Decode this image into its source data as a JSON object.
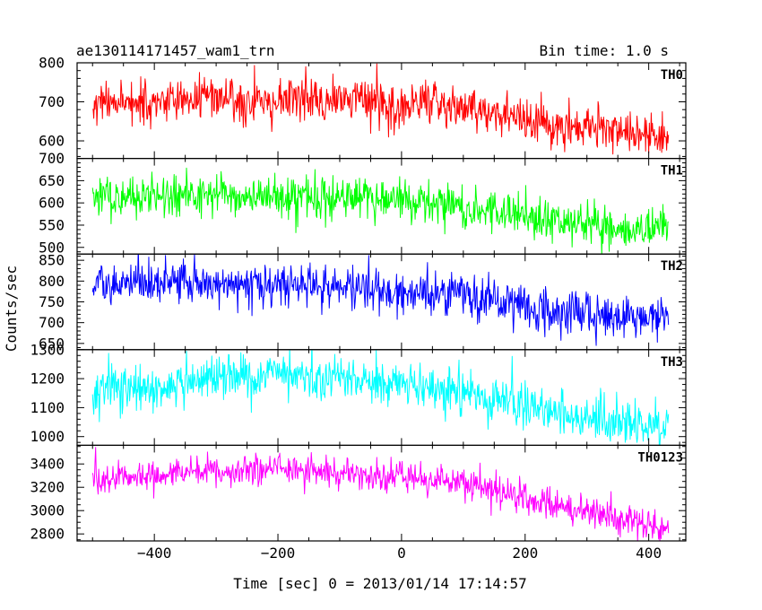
{
  "header": {
    "title": "ae130114171457_wam1_trn",
    "bin_time": "Bin time: 1.0 s"
  },
  "chart_data": {
    "type": "line",
    "title": "ae130114171457_wam1_trn",
    "subtitle": "Bin time: 1.0 s",
    "xlabel": "Time [sec] 0 = 2013/01/14 17:14:57",
    "ylabel": "Counts/sec",
    "xlim": [
      -525,
      460
    ],
    "x_ticks": [
      -400,
      -200,
      0,
      200,
      400
    ],
    "x_tick_labels": [
      "−400",
      "−200",
      "0",
      "200",
      "400"
    ],
    "x_minor_step": 50,
    "x_start": -500,
    "x_end": 432,
    "x_step": 1,
    "grid": false,
    "noise_seed": 20130114,
    "panels": [
      {
        "name": "TH0",
        "color": "#ff0000",
        "ylim": [
          555,
          800
        ],
        "y_ticks": [
          600,
          700,
          800
        ],
        "y_minor_step": 20,
        "trend_t": [
          -500,
          -300,
          -100,
          0,
          100,
          200,
          300,
          432
        ],
        "trend_v": [
          700,
          705,
          705,
          695,
          680,
          655,
          630,
          610
        ],
        "noise": 28
      },
      {
        "name": "TH1",
        "color": "#00ff00",
        "ylim": [
          485,
          700
        ],
        "y_ticks": [
          500,
          550,
          600,
          650,
          700
        ],
        "y_minor_step": 10,
        "trend_t": [
          -500,
          -300,
          -100,
          0,
          100,
          200,
          300,
          432
        ],
        "trend_v": [
          615,
          618,
          612,
          605,
          590,
          570,
          550,
          540
        ],
        "noise": 24
      },
      {
        "name": "TH2",
        "color": "#0000ff",
        "ylim": [
          635,
          865
        ],
        "y_ticks": [
          650,
          700,
          750,
          800,
          850
        ],
        "y_minor_step": 10,
        "trend_t": [
          -500,
          -300,
          -100,
          0,
          100,
          200,
          300,
          432
        ],
        "trend_v": [
          790,
          795,
          788,
          775,
          760,
          740,
          720,
          705
        ],
        "noise": 26
      },
      {
        "name": "TH3",
        "color": "#00ffff",
        "ylim": [
          970,
          1300
        ],
        "y_ticks": [
          1000,
          1100,
          1200,
          1300
        ],
        "y_minor_step": 20,
        "trend_t": [
          -500,
          -400,
          -300,
          -200,
          -100,
          0,
          100,
          200,
          300,
          432
        ],
        "trend_v": [
          1160,
          1170,
          1210,
          1215,
          1200,
          1185,
          1150,
          1110,
          1060,
          1030
        ],
        "noise": 38
      },
      {
        "name": "TH0123",
        "color": "#ff00ff",
        "ylim": [
          2740,
          3560
        ],
        "y_ticks": [
          2800,
          3000,
          3200,
          3400
        ],
        "y_minor_step": 50,
        "trend_t": [
          -500,
          -400,
          -300,
          -200,
          -100,
          0,
          100,
          200,
          300,
          432
        ],
        "trend_v": [
          3270,
          3290,
          3350,
          3360,
          3340,
          3300,
          3220,
          3100,
          2990,
          2840
        ],
        "noise": 70
      }
    ]
  }
}
